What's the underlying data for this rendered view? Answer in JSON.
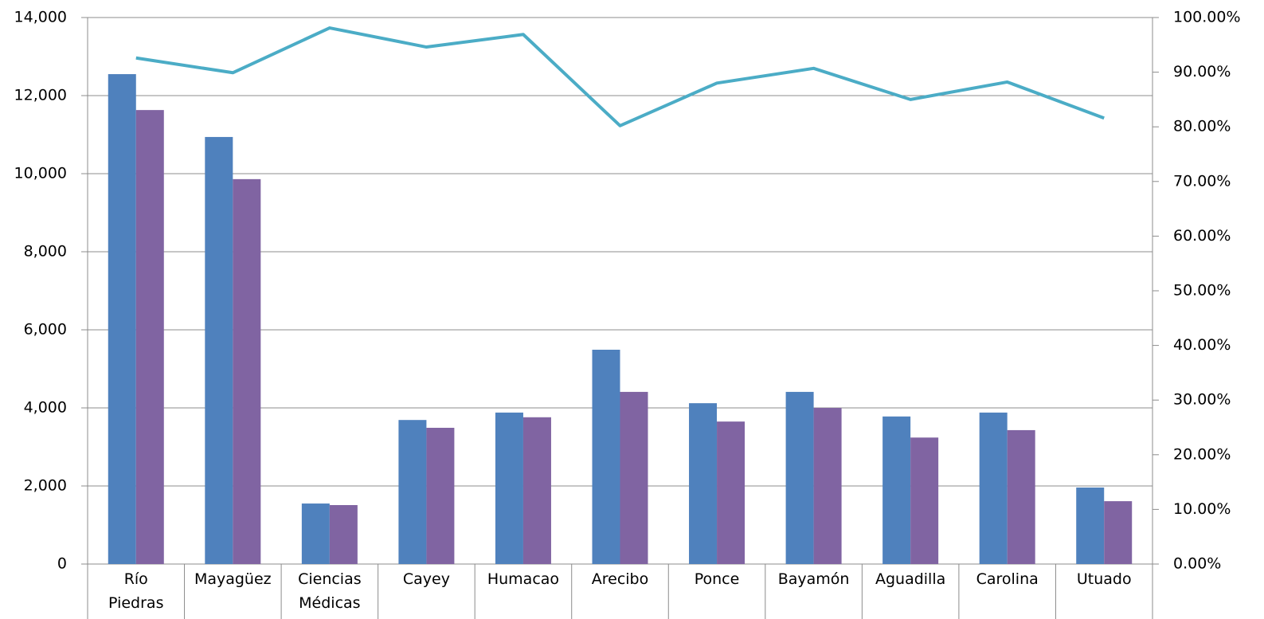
{
  "chart_data": {
    "type": "bar",
    "categories": [
      "Río Piedras",
      "Mayagüez",
      "Ciencias Médicas",
      "Cayey",
      "Humacao",
      "Arecibo",
      "Ponce",
      "Bayamón",
      "Aguadilla",
      "Carolina",
      "Utuado"
    ],
    "series": [
      {
        "type": "bar",
        "color": "#4f81bd",
        "values": [
          12550,
          10940,
          1550,
          3690,
          3880,
          5490,
          4120,
          4410,
          3780,
          3880,
          1960
        ]
      },
      {
        "type": "bar",
        "color": "#8064a2",
        "values": [
          11630,
          9860,
          1510,
          3490,
          3760,
          4410,
          3650,
          4000,
          3240,
          3430,
          1610
        ]
      },
      {
        "type": "line",
        "axis": "y2",
        "color": "#4bacc6",
        "values": [
          92.6,
          89.9,
          98.1,
          94.6,
          96.9,
          80.2,
          88.0,
          90.7,
          85.0,
          88.2,
          81.6
        ]
      }
    ],
    "ylim": [
      0,
      14000
    ],
    "yticks": [
      0,
      {
        "value": 2000,
        "label": "2,000"
      },
      {
        "value": 4000,
        "label": "4,000"
      },
      {
        "value": 6000,
        "label": "6,000"
      },
      {
        "value": 8000,
        "label": "8,000"
      },
      {
        "value": 10000,
        "label": "10,000"
      },
      {
        "value": 12000,
        "label": "12,000"
      },
      {
        "value": 14000,
        "label": "14,000"
      }
    ],
    "y2lim": [
      0,
      100
    ],
    "y2ticks": [
      {
        "value": 0,
        "label": "0.00%"
      },
      {
        "value": 10,
        "label": "10.00%"
      },
      {
        "value": 20,
        "label": "20.00%"
      },
      {
        "value": 30,
        "label": "30.00%"
      },
      {
        "value": 40,
        "label": "40.00%"
      },
      {
        "value": 50,
        "label": "50.00%"
      },
      {
        "value": 60,
        "label": "60.00%"
      },
      {
        "value": 70,
        "label": "70.00%"
      },
      {
        "value": 80,
        "label": "80.00%"
      },
      {
        "value": 90,
        "label": "90.00%"
      },
      {
        "value": 100,
        "label": "100.00%"
      }
    ],
    "grid": true
  }
}
